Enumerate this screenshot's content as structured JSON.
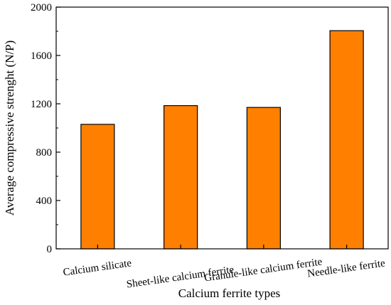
{
  "chart_data": {
    "type": "bar",
    "title": "",
    "xlabel": "Calcium ferrite types",
    "ylabel": "Average compressive strenght (N/P)",
    "categories": [
      "Calcium silicate",
      "Sheet-like calcium ferrite",
      "Granule-like calcium ferrite",
      "Needle-like ferrite"
    ],
    "values": [
      1030,
      1185,
      1170,
      1805
    ],
    "ylim": [
      0,
      2000
    ],
    "yticks": [
      "0",
      "400",
      "800",
      "1200",
      "1600",
      "2000"
    ],
    "bar_color": "#ff8000",
    "bar_edge_color": "#000000",
    "grid": false,
    "legend": "none"
  }
}
